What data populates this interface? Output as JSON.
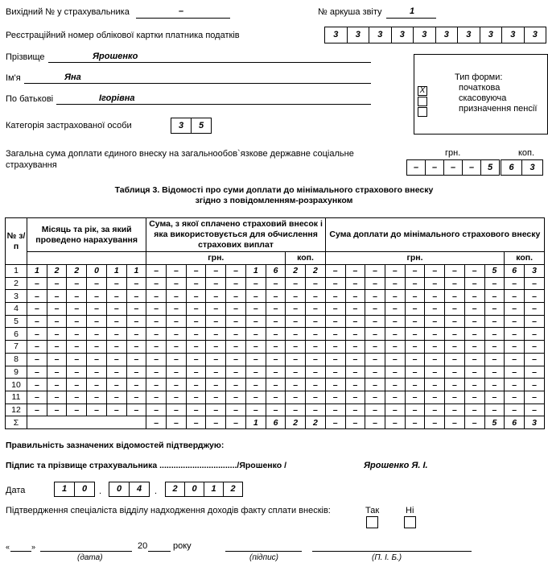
{
  "header": {
    "outgoing_label": "Вихідний № у страхувальника",
    "outgoing_value": "–",
    "sheet_label": "№ аркуша звіту",
    "sheet_value": "1",
    "reg_label": "Реєстраційний номер облікової картки платника податків",
    "reg_digits": [
      "3",
      "3",
      "3",
      "3",
      "3",
      "3",
      "3",
      "3",
      "3",
      "3"
    ],
    "surname_label": "Прізвище",
    "surname_value": "Ярошенко",
    "name_label": "Ім'я",
    "name_value": "Яна",
    "patronymic_label": "По батькові",
    "patronymic_value": "Ігорівна",
    "category_label": "Категорія застрахованої особи",
    "category_digits": [
      "3",
      "5"
    ],
    "total_label_1": "Загальна сума доплати єдиного внеску на загальнообов`язкове державне соціальне",
    "total_label_2": "страхування",
    "grn_label": "грн.",
    "kop_label": "коп.",
    "total_grn": [
      "–",
      "–",
      "–",
      "–",
      "5"
    ],
    "total_kop": [
      "6",
      "3"
    ]
  },
  "form_type": {
    "title": "Тип форми:",
    "options": [
      {
        "label": "початкова",
        "checked": true,
        "mark": "X"
      },
      {
        "label": "скасовуюча",
        "checked": false
      },
      {
        "label": "призначення пенсії",
        "checked": false
      }
    ]
  },
  "table": {
    "title_1": "Таблиця 3. Відомості про суми доплати до мінімального страхового внеску",
    "title_2": "згідно з повідомленням-розрахунком",
    "col_no": "№ з/п",
    "col_month": "Місяць та рік, за який проведено нарахування",
    "col_sum": "Сума, з якої сплачено страховий внесок і яка використовується для обчислення страхових виплат",
    "col_extra": "Сума доплати до мінімального страхового внеску",
    "grn": "грн.",
    "kop": "коп.",
    "rows": [
      {
        "no": "1",
        "cells": [
          "1",
          "2",
          "2",
          "0",
          "1",
          "1",
          "–",
          "–",
          "–",
          "–",
          "–",
          "1",
          "6",
          "2",
          "2",
          "–",
          "–",
          "–",
          "–",
          "–",
          "–",
          "–",
          "–",
          "5",
          "6",
          "3"
        ]
      },
      {
        "no": "2",
        "cells": [
          "–",
          "–",
          "–",
          "–",
          "–",
          "–",
          "–",
          "–",
          "–",
          "–",
          "–",
          "–",
          "–",
          "–",
          "–",
          "–",
          "–",
          "–",
          "–",
          "–",
          "–",
          "–",
          "–",
          "–",
          "–",
          "–"
        ]
      },
      {
        "no": "3",
        "cells": [
          "–",
          "–",
          "–",
          "–",
          "–",
          "–",
          "–",
          "–",
          "–",
          "–",
          "–",
          "–",
          "–",
          "–",
          "–",
          "–",
          "–",
          "–",
          "–",
          "–",
          "–",
          "–",
          "–",
          "–",
          "–",
          "–"
        ]
      },
      {
        "no": "4",
        "cells": [
          "–",
          "–",
          "–",
          "–",
          "–",
          "–",
          "–",
          "–",
          "–",
          "–",
          "–",
          "–",
          "–",
          "–",
          "–",
          "–",
          "–",
          "–",
          "–",
          "–",
          "–",
          "–",
          "–",
          "–",
          "–",
          "–"
        ]
      },
      {
        "no": "5",
        "cells": [
          "–",
          "–",
          "–",
          "–",
          "–",
          "–",
          "–",
          "–",
          "–",
          "–",
          "–",
          "–",
          "–",
          "–",
          "–",
          "–",
          "–",
          "–",
          "–",
          "–",
          "–",
          "–",
          "–",
          "–",
          "–",
          "–"
        ]
      },
      {
        "no": "6",
        "cells": [
          "–",
          "–",
          "–",
          "–",
          "–",
          "–",
          "–",
          "–",
          "–",
          "–",
          "–",
          "–",
          "–",
          "–",
          "–",
          "–",
          "–",
          "–",
          "–",
          "–",
          "–",
          "–",
          "–",
          "–",
          "–",
          "–"
        ]
      },
      {
        "no": "7",
        "cells": [
          "–",
          "–",
          "–",
          "–",
          "–",
          "–",
          "–",
          "–",
          "–",
          "–",
          "–",
          "–",
          "–",
          "–",
          "–",
          "–",
          "–",
          "–",
          "–",
          "–",
          "–",
          "–",
          "–",
          "–",
          "–",
          "–"
        ]
      },
      {
        "no": "8",
        "cells": [
          "–",
          "–",
          "–",
          "–",
          "–",
          "–",
          "–",
          "–",
          "–",
          "–",
          "–",
          "–",
          "–",
          "–",
          "–",
          "–",
          "–",
          "–",
          "–",
          "–",
          "–",
          "–",
          "–",
          "–",
          "–",
          "–"
        ]
      },
      {
        "no": "9",
        "cells": [
          "–",
          "–",
          "–",
          "–",
          "–",
          "–",
          "–",
          "–",
          "–",
          "–",
          "–",
          "–",
          "–",
          "–",
          "–",
          "–",
          "–",
          "–",
          "–",
          "–",
          "–",
          "–",
          "–",
          "–",
          "–",
          "–"
        ]
      },
      {
        "no": "10",
        "cells": [
          "–",
          "–",
          "–",
          "–",
          "–",
          "–",
          "–",
          "–",
          "–",
          "–",
          "–",
          "–",
          "–",
          "–",
          "–",
          "–",
          "–",
          "–",
          "–",
          "–",
          "–",
          "–",
          "–",
          "–",
          "–",
          "–"
        ]
      },
      {
        "no": "11",
        "cells": [
          "–",
          "–",
          "–",
          "–",
          "–",
          "–",
          "–",
          "–",
          "–",
          "–",
          "–",
          "–",
          "–",
          "–",
          "–",
          "–",
          "–",
          "–",
          "–",
          "–",
          "–",
          "–",
          "–",
          "–",
          "–",
          "–"
        ]
      },
      {
        "no": "12",
        "cells": [
          "–",
          "–",
          "–",
          "–",
          "–",
          "–",
          "–",
          "–",
          "–",
          "–",
          "–",
          "–",
          "–",
          "–",
          "–",
          "–",
          "–",
          "–",
          "–",
          "–",
          "–",
          "–",
          "–",
          "–",
          "–",
          "–"
        ]
      }
    ],
    "sum_row": {
      "no": "Σ",
      "cells": [
        "–",
        "–",
        "–",
        "–",
        "–",
        "1",
        "6",
        "2",
        "2",
        "–",
        "–",
        "–",
        "–",
        "–",
        "–",
        "–",
        "–",
        "5",
        "6",
        "3"
      ]
    }
  },
  "footer": {
    "confirm": "Правильність зазначених відомостей підтверджую:",
    "sign_label": "Підпис та прізвище страхувальника ................................./Ярошенко /",
    "sign_name": "Ярошенко Я. І.",
    "date_label": "Дата",
    "date_day": [
      "1",
      "0"
    ],
    "date_month": [
      "0",
      "4"
    ],
    "date_year": [
      "2",
      "0",
      "1",
      "2"
    ],
    "dot": ".",
    "specialist": "Підтвердження спеціаліста відділу надходження доходів факту сплати внесків:",
    "yes": "Так",
    "no": "Ні",
    "quote_open": "«",
    "quote_close": "»",
    "year_prefix": "20",
    "year_suffix": "року",
    "cap_date": "(дата)",
    "cap_sign": "(підпис)",
    "cap_name": "(П. І. Б.)"
  }
}
